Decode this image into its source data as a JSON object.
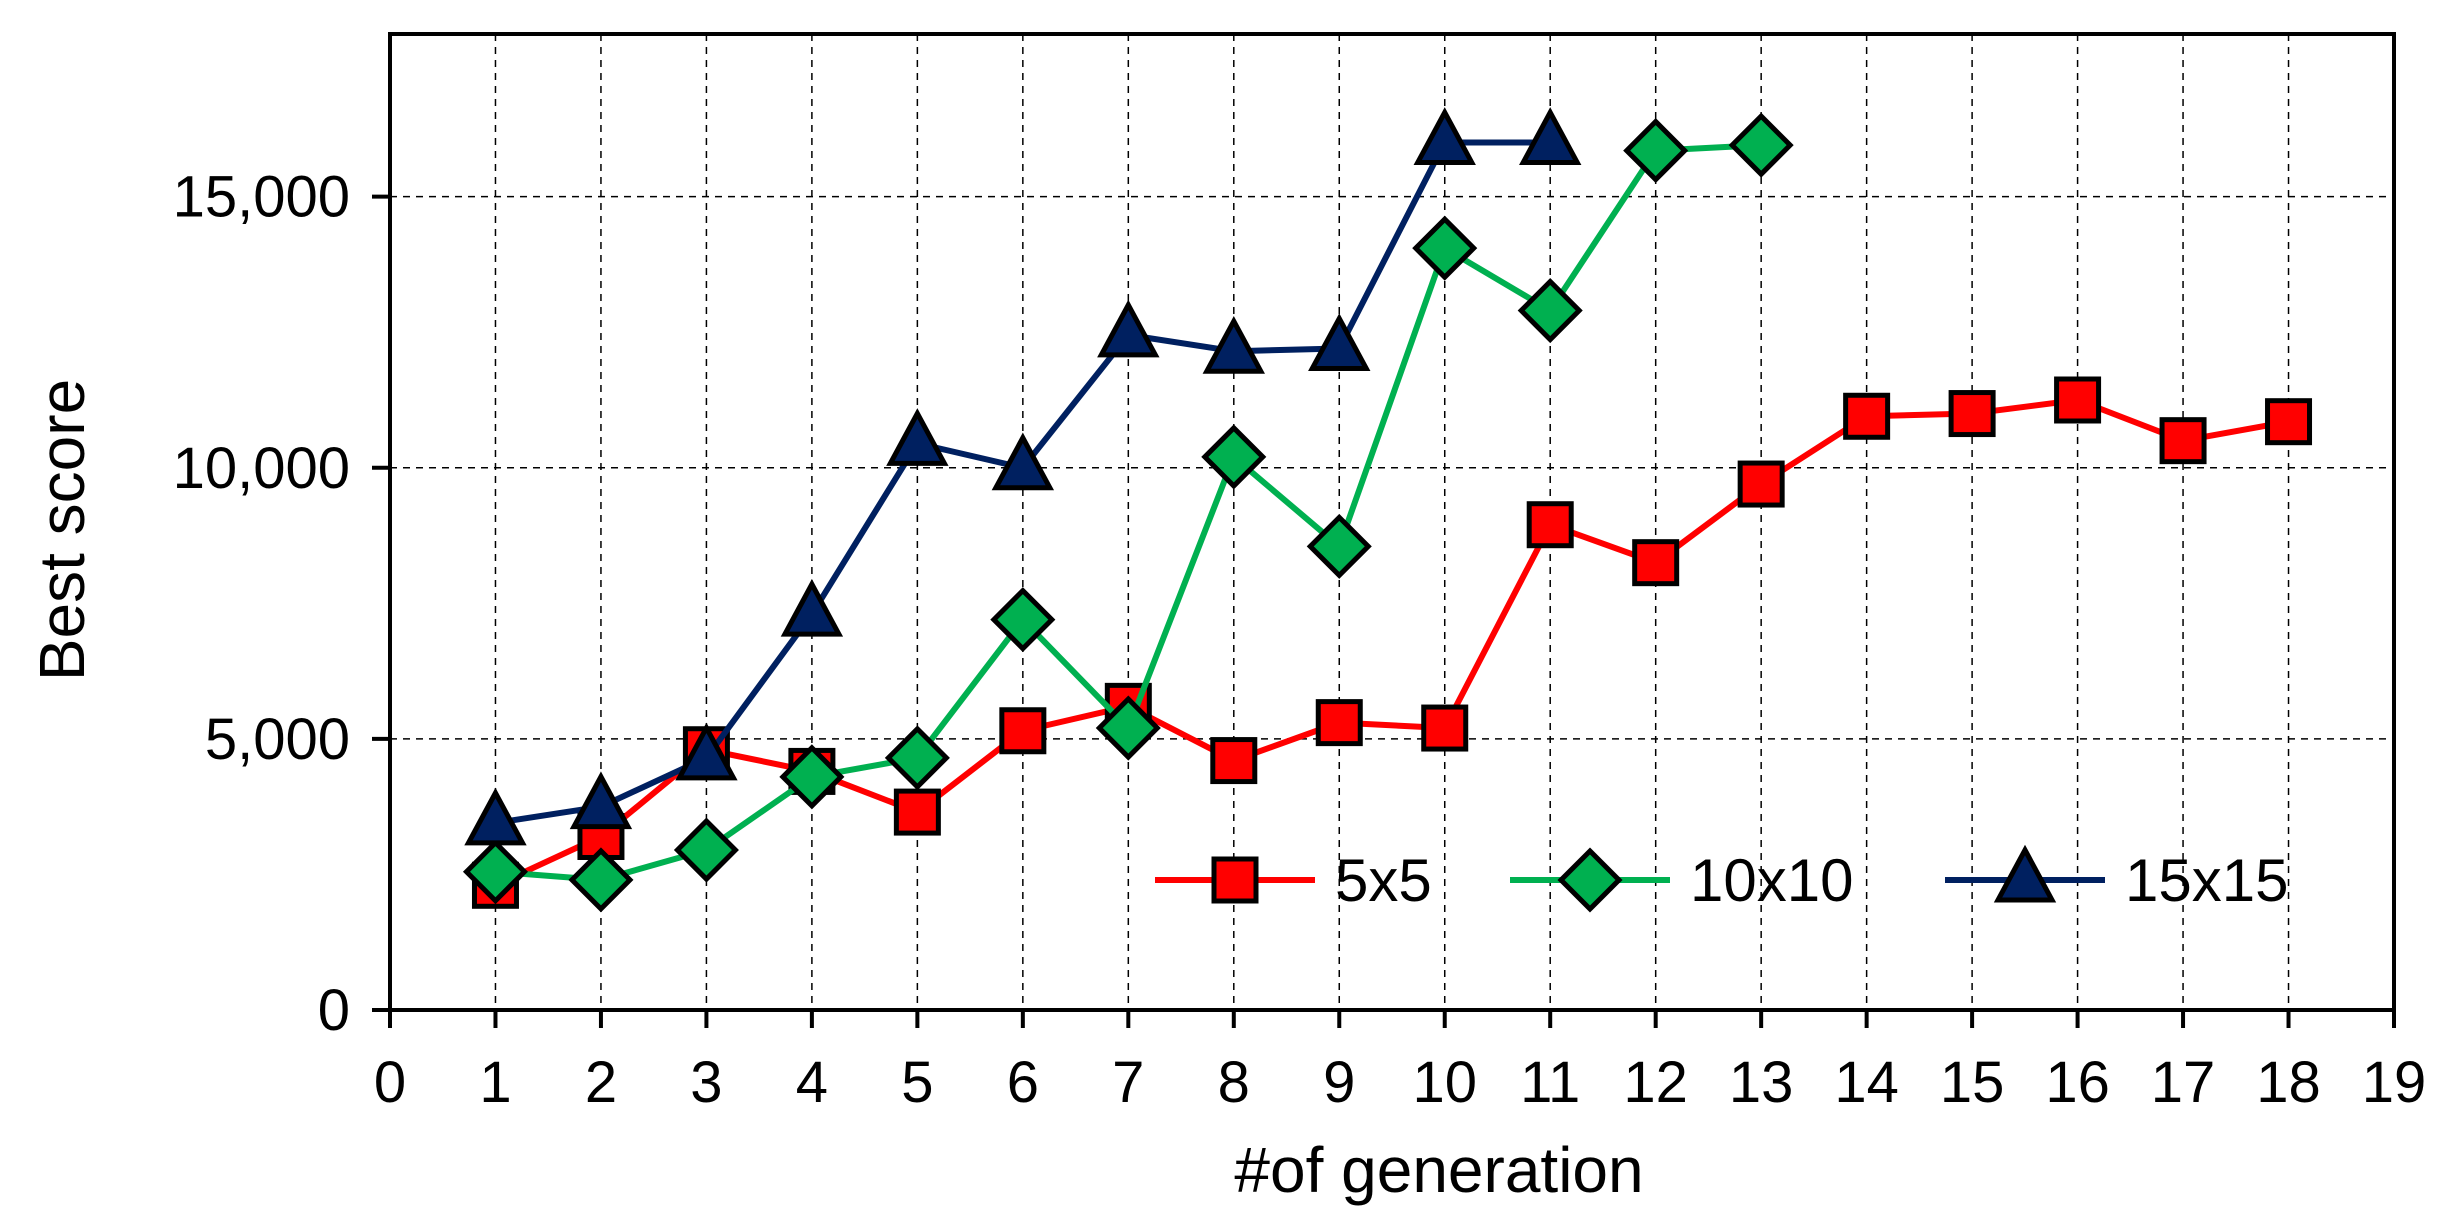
{
  "chart_data": {
    "type": "line",
    "xlabel": "#of generation",
    "ylabel": "Best score",
    "xlim": [
      0,
      19
    ],
    "ylim": [
      0,
      18000
    ],
    "x_ticks": [
      "0",
      "1",
      "2",
      "3",
      "4",
      "5",
      "6",
      "7",
      "8",
      "9",
      "10",
      "11",
      "12",
      "13",
      "14",
      "15",
      "16",
      "17",
      "18",
      "19"
    ],
    "y_ticks": [
      "0",
      "5,000",
      "10,000",
      "15,000"
    ],
    "y_tick_values": [
      0,
      5000,
      10000,
      15000
    ],
    "grid": true,
    "legend_position": "lower-right",
    "series": [
      {
        "name": "5x5",
        "color": "#ff0000",
        "marker": "square",
        "x": [
          1,
          2,
          3,
          4,
          5,
          6,
          7,
          8,
          9,
          10,
          11,
          12,
          13,
          14,
          15,
          16,
          17,
          18
        ],
        "values": [
          2300,
          3200,
          4800,
          4400,
          3650,
          5150,
          5600,
          4600,
          5300,
          5200,
          8950,
          8250,
          9700,
          10950,
          11000,
          11250,
          10500,
          10850
        ]
      },
      {
        "name": "10x10",
        "color": "#00b050",
        "marker": "diamond",
        "x": [
          1,
          2,
          3,
          4,
          5,
          6,
          7,
          8,
          9,
          10,
          11,
          12,
          13
        ],
        "values": [
          2550,
          2400,
          2950,
          4300,
          4650,
          7200,
          5200,
          10200,
          8550,
          14050,
          12900,
          15850,
          15950
        ]
      },
      {
        "name": "15x15",
        "color": "#002060",
        "marker": "triangle",
        "x": [
          1,
          2,
          3,
          4,
          5,
          6,
          7,
          8,
          9,
          10,
          11
        ],
        "values": [
          3450,
          3750,
          4650,
          7300,
          10450,
          10000,
          12450,
          12150,
          12200,
          16000,
          16000
        ]
      }
    ]
  }
}
